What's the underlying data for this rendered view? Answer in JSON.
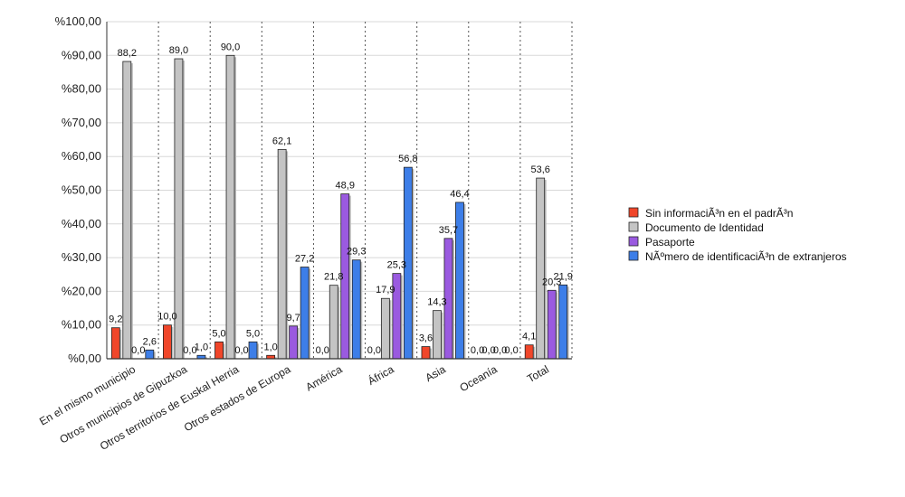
{
  "chart_data": {
    "type": "bar",
    "title": "",
    "xlabel": "",
    "ylabel": "",
    "ylim": [
      0,
      100
    ],
    "yticks": [
      0,
      10,
      20,
      30,
      40,
      50,
      60,
      70,
      80,
      90,
      100
    ],
    "ytick_labels": [
      "%0,00",
      "%10,00",
      "%20,00",
      "%30,00",
      "%40,00",
      "%50,00",
      "%60,00",
      "%70,00",
      "%80,00",
      "%90,00",
      "%100,00"
    ],
    "grid": true,
    "legend_position": "right",
    "categories": [
      "En el mismo municipio",
      "Otros municipios de Gipuzkoa",
      "Otros territorios de Euskal Herria",
      "Otros estados de Europa",
      "América",
      "África",
      "Asia",
      "Oceanía",
      "Total"
    ],
    "series": [
      {
        "name": "Sin informaciÃ³n en el padrÃ³n",
        "color": "#f0462a",
        "values": [
          9.2,
          10.0,
          5.0,
          1.0,
          0.0,
          0.0,
          3.6,
          0.0,
          4.1
        ],
        "labels": [
          "9,2",
          "10,0",
          "5,0",
          "1,0",
          "0,0",
          "0,0",
          "3,6",
          "0,0",
          "4,1"
        ]
      },
      {
        "name": "Documento de Identidad",
        "color": "#c4c4c4",
        "values": [
          88.2,
          89.0,
          90.0,
          62.1,
          21.8,
          17.9,
          14.3,
          0.0,
          53.6
        ],
        "labels": [
          "88,2",
          "89,0",
          "90,0",
          "62,1",
          "21,8",
          "17,9",
          "14,3",
          "0,0",
          "53,6"
        ]
      },
      {
        "name": "Pasaporte",
        "color": "#9a5ae0",
        "values": [
          0.0,
          0.0,
          0.0,
          9.7,
          48.9,
          25.3,
          35.7,
          0.0,
          20.3
        ],
        "labels": [
          "0,0",
          "0,0",
          "0,0",
          "9,7",
          "48,9",
          "25,3",
          "35,7",
          "0,0",
          "20,3"
        ]
      },
      {
        "name": "NÃºmero de identificaciÃ³n de extranjeros",
        "color": "#3d7ee8",
        "values": [
          2.6,
          1.0,
          5.0,
          27.2,
          29.3,
          56.8,
          46.4,
          0.0,
          21.9
        ],
        "labels": [
          "2,6",
          "1,0",
          "5,0",
          "27,2",
          "29,3",
          "56,8",
          "46,4",
          "0,0",
          "21,9"
        ]
      }
    ]
  }
}
